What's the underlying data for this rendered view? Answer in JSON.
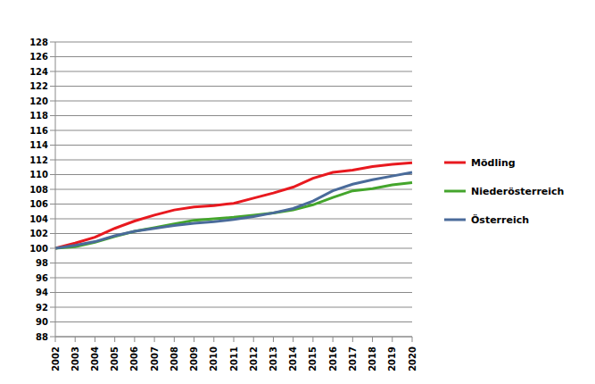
{
  "chart_data": {
    "type": "line",
    "categories": [
      "2002",
      "2003",
      "2004",
      "2005",
      "2006",
      "2007",
      "2008",
      "2009",
      "2010",
      "2011",
      "2012",
      "2013",
      "2014",
      "2015",
      "2016",
      "2017",
      "2018",
      "2019",
      "2020"
    ],
    "series": [
      {
        "name": "Mödling",
        "color": "#e8191f",
        "values": [
          100,
          100.7,
          101.5,
          102.7,
          103.7,
          104.5,
          105.2,
          105.6,
          105.8,
          106.1,
          106.8,
          107.5,
          108.3,
          109.5,
          110.3,
          110.6,
          111.1,
          111.4,
          111.6
        ]
      },
      {
        "name": "Niederösterreich",
        "color": "#44a52c",
        "values": [
          100,
          100.2,
          100.8,
          101.6,
          102.3,
          102.8,
          103.3,
          103.8,
          104.0,
          104.2,
          104.5,
          104.8,
          105.2,
          105.9,
          106.9,
          107.8,
          108.1,
          108.6,
          108.9
        ]
      },
      {
        "name": "Österreich",
        "color": "#4a6b9a",
        "values": [
          100,
          100.4,
          100.9,
          101.7,
          102.3,
          102.7,
          103.1,
          103.4,
          103.6,
          103.9,
          104.3,
          104.8,
          105.4,
          106.4,
          107.8,
          108.7,
          109.3,
          109.8,
          110.3
        ]
      }
    ],
    "ylim": [
      88,
      128
    ],
    "yticks": [
      88,
      90,
      92,
      94,
      96,
      98,
      100,
      102,
      104,
      106,
      108,
      110,
      112,
      114,
      116,
      118,
      120,
      122,
      124,
      126,
      128
    ],
    "grid": true,
    "legend": "right"
  }
}
